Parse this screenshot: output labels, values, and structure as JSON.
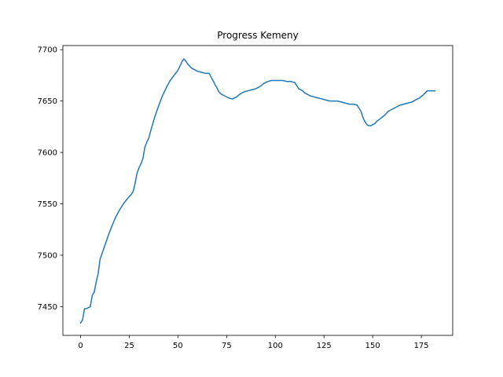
{
  "chart_data": {
    "type": "line",
    "title": "Progress Kemeny",
    "xlabel": "",
    "ylabel": "",
    "xlim": [
      -9.1,
      191.1
    ],
    "ylim": [
      7422,
      7704
    ],
    "grid": false,
    "xticks": [
      0,
      25,
      50,
      75,
      100,
      125,
      150,
      175
    ],
    "yticks": [
      7450,
      7500,
      7550,
      7600,
      7650,
      7700
    ],
    "series": [
      {
        "color": "#1f77b4",
        "x": [
          0,
          1,
          2,
          3,
          4,
          5,
          6,
          7,
          8,
          9,
          10,
          12,
          14,
          16,
          18,
          20,
          22,
          24,
          26,
          27,
          28,
          29,
          30,
          31,
          32,
          33,
          34,
          35,
          36,
          38,
          40,
          42,
          44,
          46,
          48,
          50,
          52,
          53,
          54,
          55,
          56,
          57,
          58,
          60,
          62,
          64,
          66,
          68,
          69,
          70,
          71,
          72,
          74,
          76,
          78,
          80,
          82,
          84,
          86,
          88,
          90,
          92,
          94,
          96,
          98,
          100,
          102,
          104,
          106,
          108,
          110,
          112,
          114,
          115,
          116,
          118,
          120,
          122,
          124,
          126,
          128,
          130,
          132,
          134,
          136,
          138,
          140,
          142,
          144,
          145,
          146,
          147,
          148,
          149,
          150,
          151,
          152,
          154,
          156,
          158,
          160,
          162,
          164,
          166,
          168,
          170,
          172,
          174,
          176,
          178,
          180,
          182
        ],
        "values": [
          7434,
          7437,
          7448,
          7448,
          7449,
          7450,
          7461,
          7464,
          7474,
          7482,
          7496,
          7507,
          7518,
          7528,
          7537,
          7544,
          7550,
          7555,
          7559,
          7562,
          7570,
          7580,
          7585,
          7589,
          7594,
          7605,
          7610,
          7614,
          7621,
          7634,
          7645,
          7655,
          7663,
          7670,
          7675,
          7680,
          7688,
          7691,
          7689,
          7686,
          7684,
          7682,
          7681,
          7679,
          7678,
          7677,
          7677,
          7670,
          7666,
          7663,
          7659,
          7657,
          7655,
          7653,
          7652,
          7654,
          7657,
          7659,
          7660,
          7661,
          7662,
          7664,
          7667,
          7669,
          7670,
          7670,
          7670,
          7670,
          7669,
          7669,
          7668,
          7662,
          7660,
          7658,
          7657,
          7655,
          7654,
          7653,
          7652,
          7651,
          7650,
          7650,
          7650,
          7649,
          7648,
          7647,
          7647,
          7646,
          7640,
          7634,
          7630,
          7627,
          7626,
          7626,
          7627,
          7628,
          7630,
          7633,
          7636,
          7640,
          7642,
          7644,
          7646,
          7647,
          7648,
          7649,
          7651,
          7653,
          7656,
          7660,
          7660,
          7660
        ]
      }
    ]
  }
}
